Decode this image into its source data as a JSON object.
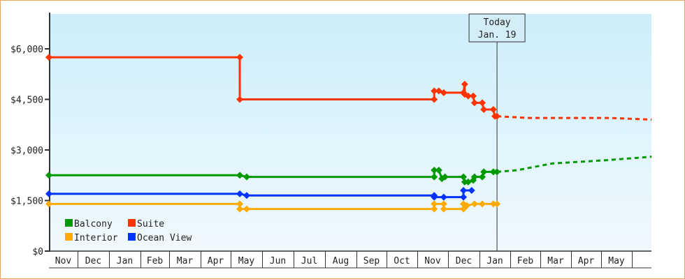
{
  "chart_data": {
    "type": "line",
    "title": "",
    "xlabel": "",
    "ylabel": "",
    "ylim": [
      0,
      7000
    ],
    "y_ticks": [
      "$0",
      "$1,500",
      "$3,000",
      "$4,500",
      "$6,000"
    ],
    "y_tick_values": [
      0,
      1500,
      3000,
      4500,
      6000
    ],
    "x_categories": [
      "Nov",
      "Dec",
      "Jan",
      "Feb",
      "Mar",
      "Apr",
      "May",
      "Jun",
      "Jul",
      "Aug",
      "Sep",
      "Oct",
      "Nov",
      "Dec",
      "Jan",
      "Feb",
      "Mar",
      "Apr",
      "May",
      ""
    ],
    "x_unit": "position along month axis (0 = start of first Nov)",
    "grid": false,
    "background": "light blue gradient",
    "today_marker": {
      "x": 14.57,
      "label_line1": "Today",
      "label_line2": "Jan. 19"
    },
    "legend": {
      "placement": "bottom-left"
    },
    "series": [
      {
        "name": "Suite",
        "color": "#ff3300",
        "points": [
          [
            0,
            5750
          ],
          [
            6.29,
            5750
          ],
          [
            6.29,
            4500
          ],
          [
            12.55,
            4500
          ],
          [
            12.55,
            4750
          ],
          [
            12.7,
            4750
          ],
          [
            12.86,
            4700
          ],
          [
            13.49,
            4700
          ],
          [
            13.53,
            4950
          ],
          [
            13.53,
            4650
          ],
          [
            13.64,
            4600
          ],
          [
            13.8,
            4600
          ],
          [
            13.84,
            4400
          ],
          [
            14.09,
            4400
          ],
          [
            14.14,
            4200
          ],
          [
            14.45,
            4200
          ],
          [
            14.5,
            4000
          ],
          [
            14.57,
            4000
          ]
        ],
        "forecast": [
          [
            14.57,
            4000
          ],
          [
            15.6,
            3950
          ],
          [
            18.3,
            3950
          ],
          [
            19.64,
            3900
          ]
        ]
      },
      {
        "name": "Balcony",
        "color": "#009900",
        "points": [
          [
            0,
            2250
          ],
          [
            6.29,
            2250
          ],
          [
            6.51,
            2200
          ],
          [
            12.55,
            2200
          ],
          [
            12.55,
            2400
          ],
          [
            12.7,
            2400
          ],
          [
            12.8,
            2150
          ],
          [
            12.9,
            2200
          ],
          [
            13.49,
            2200
          ],
          [
            13.53,
            2050
          ],
          [
            13.64,
            2050
          ],
          [
            13.8,
            2100
          ],
          [
            13.84,
            2200
          ],
          [
            14.09,
            2200
          ],
          [
            14.14,
            2350
          ],
          [
            14.45,
            2350
          ],
          [
            14.57,
            2350
          ]
        ],
        "forecast": [
          [
            14.57,
            2350
          ],
          [
            15.23,
            2400
          ],
          [
            16.39,
            2600
          ],
          [
            18.23,
            2700
          ],
          [
            19.64,
            2800
          ]
        ]
      },
      {
        "name": "Ocean View",
        "color": "#0033ff",
        "points": [
          [
            0,
            1700
          ],
          [
            6.29,
            1700
          ],
          [
            6.51,
            1650
          ],
          [
            12.55,
            1650
          ],
          [
            12.55,
            1600
          ],
          [
            12.86,
            1600
          ],
          [
            13.49,
            1600
          ],
          [
            13.49,
            1800
          ],
          [
            13.75,
            1800
          ]
        ],
        "forecast": []
      },
      {
        "name": "Interior",
        "color": "#ffaa00",
        "points": [
          [
            0,
            1400
          ],
          [
            6.29,
            1400
          ],
          [
            6.29,
            1250
          ],
          [
            6.51,
            1250
          ],
          [
            12.55,
            1250
          ],
          [
            12.55,
            1400
          ],
          [
            12.86,
            1400
          ],
          [
            12.86,
            1250
          ],
          [
            13.49,
            1250
          ],
          [
            13.49,
            1400
          ],
          [
            13.6,
            1350
          ],
          [
            13.84,
            1400
          ],
          [
            14.09,
            1400
          ],
          [
            14.45,
            1400
          ],
          [
            14.57,
            1400
          ]
        ],
        "forecast": []
      }
    ]
  }
}
